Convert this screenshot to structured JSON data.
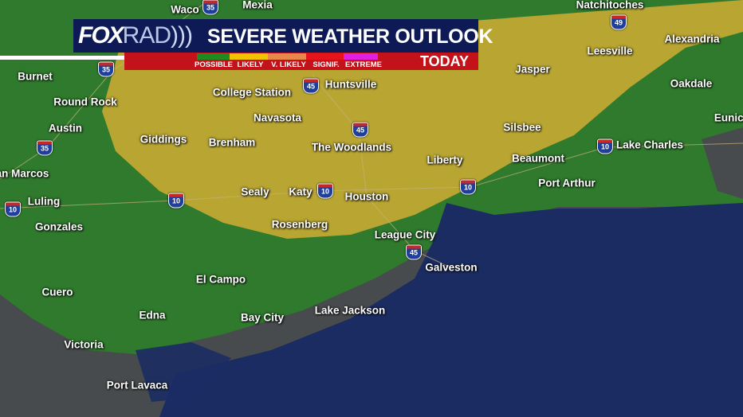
{
  "banner": {
    "logo_text": "FOXRAD",
    "logo_part1": "FOX",
    "logo_part2": "RAD",
    "title": "SEVERE WEATHER OUTLOOK",
    "period": "TODAY",
    "legend": [
      {
        "label": "POSSIBLE",
        "color": "#1f8a1f"
      },
      {
        "label": "LIKELY",
        "color": "#f2c400"
      },
      {
        "label": "V. LIKELY",
        "color": "#e8884a"
      },
      {
        "label": "SIGNIF.",
        "color": "#e8141c"
      },
      {
        "label": "EXTREME",
        "color": "#e020e0"
      }
    ]
  },
  "map_colors": {
    "possible": "#2f7a2c",
    "likely": "#b8a430",
    "land": "#484b4d",
    "water": "#1b2c63"
  },
  "cities": [
    "Waco",
    "Mexia",
    "Natchitoches",
    "Burnet",
    "Round Rock",
    "Austin",
    "an Marcos",
    "Luling",
    "Gonzales",
    "Cuero",
    "Victoria",
    "Edna",
    "Port Lavaca",
    "El Campo",
    "Bay City",
    "Lake Jackson",
    "Galveston",
    "League City",
    "Houston",
    "Katy",
    "Sealy",
    "Rosenberg",
    "Brenham",
    "Giddings",
    "Navasota",
    "College Station",
    "Huntsville",
    "The Woodlands",
    "Liberty",
    "Silsbee",
    "Jasper",
    "Leesville",
    "Alexandria",
    "Oakdale",
    "Eunice",
    "Lake Charles",
    "Beaumont",
    "Port Arthur"
  ],
  "highways": [
    "35",
    "49",
    "35",
    "45",
    "45",
    "35",
    "10",
    "10",
    "10",
    "10",
    "10",
    "45"
  ]
}
